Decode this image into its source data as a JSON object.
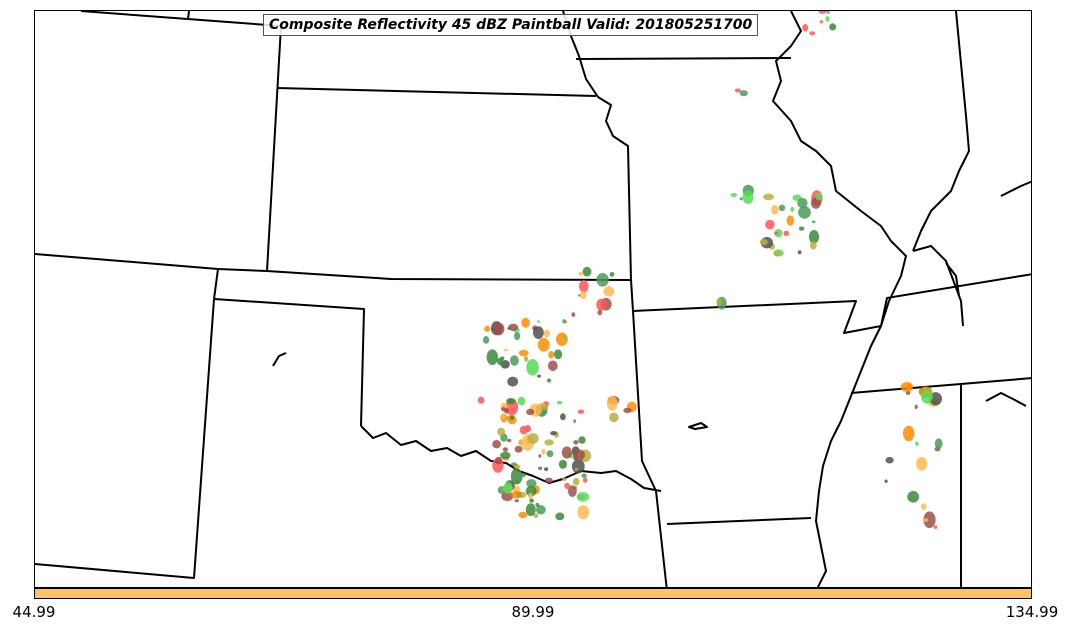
{
  "title": "Composite Reflectivity 45 dBZ Paintball Valid: 201805251700",
  "colorbar": {
    "color": "#ffc266",
    "tick_labels": [
      "44.99",
      "89.99",
      "134.99"
    ]
  },
  "palette": [
    "#a0504a",
    "#ff5555",
    "#55dd55",
    "#3a8a3a",
    "#b8b040",
    "#ffb84d",
    "#ff8c00",
    "#505050",
    "#4a9a5a"
  ]
}
